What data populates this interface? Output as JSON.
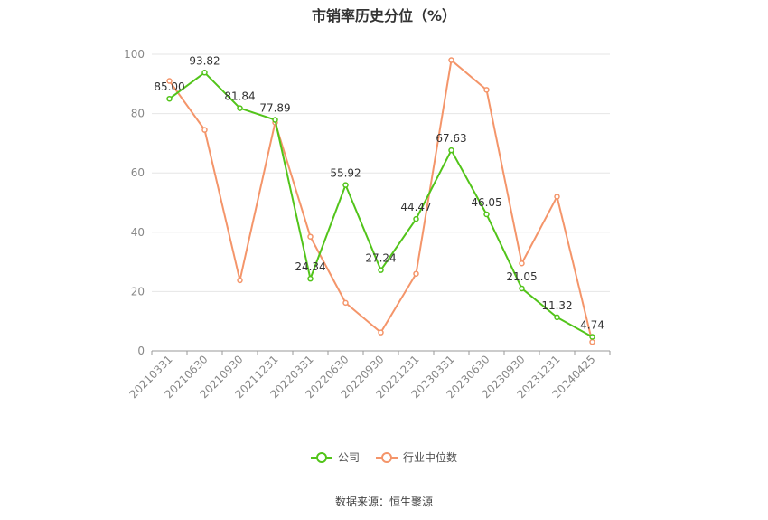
{
  "chart_data": {
    "type": "line",
    "title": "市销率历史分位（%）",
    "categories": [
      "20210331",
      "20210630",
      "20210930",
      "20211231",
      "20220331",
      "20220630",
      "20220930",
      "20221231",
      "20230331",
      "20230630",
      "20230930",
      "20231231",
      "20240425"
    ],
    "series": [
      {
        "name": "公司",
        "color": "#52c41a",
        "labeled": true,
        "values": [
          85.0,
          93.82,
          81.84,
          77.89,
          24.34,
          55.92,
          27.24,
          44.47,
          67.63,
          46.05,
          21.05,
          11.32,
          4.74
        ],
        "labels": [
          "85.00",
          "93.82",
          "81.84",
          "77.89",
          "24.34",
          "55.92",
          "27.24",
          "44.47",
          "67.63",
          "46.05",
          "21.05",
          "11.32",
          "4.74"
        ]
      },
      {
        "name": "行业中位数",
        "color": "#f4956a",
        "labeled": false,
        "values": [
          91,
          74.5,
          23.8,
          77,
          38.5,
          16.2,
          6.2,
          26,
          98,
          88,
          29.5,
          52,
          3
        ]
      }
    ],
    "ylim": [
      0,
      100
    ],
    "yticks": [
      0,
      20,
      40,
      60,
      80,
      100
    ],
    "grid": true,
    "legend_position": "bottom"
  },
  "source_text": "数据来源：恒生聚源"
}
